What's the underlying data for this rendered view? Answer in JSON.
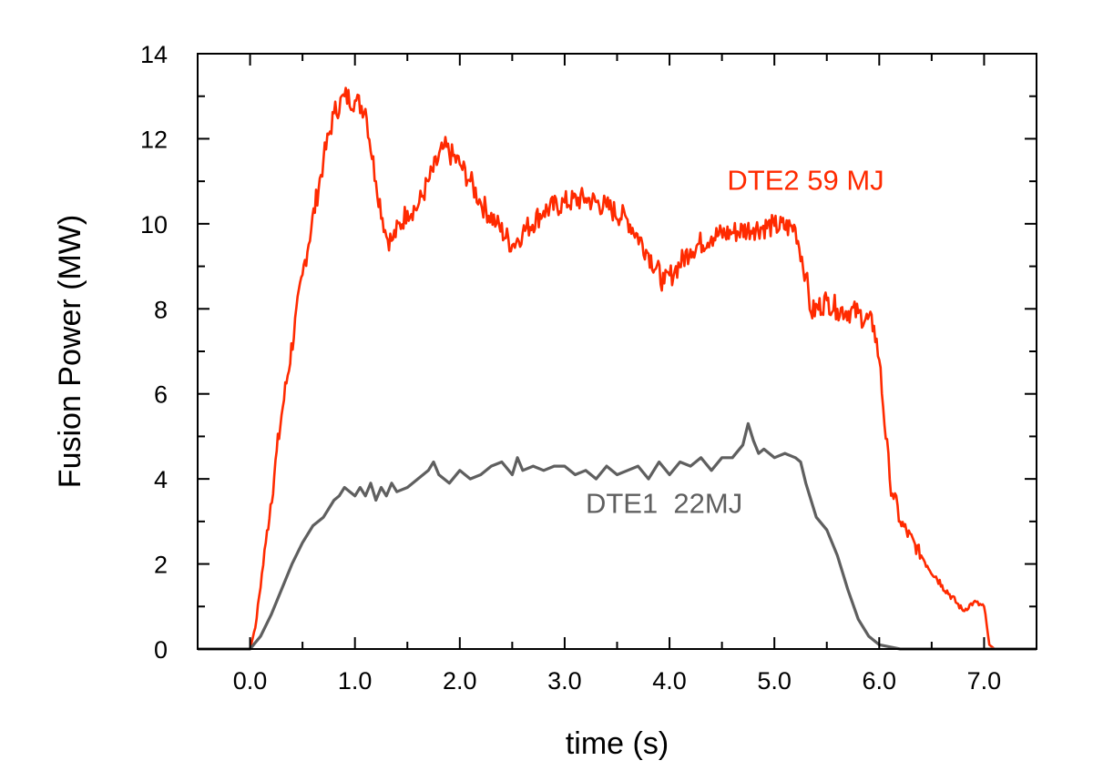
{
  "chart_data": {
    "type": "line",
    "title": "",
    "xlabel": "time (s)",
    "ylabel": "Fusion Power (MW)",
    "xlim": [
      -0.5,
      7.5
    ],
    "ylim": [
      0,
      14
    ],
    "x_ticks": [
      0.0,
      1.0,
      2.0,
      3.0,
      4.0,
      5.0,
      6.0,
      7.0
    ],
    "x_tick_labels": [
      "0.0",
      "1.0",
      "2.0",
      "3.0",
      "4.0",
      "5.0",
      "6.0",
      "7.0"
    ],
    "y_ticks": [
      0,
      2,
      4,
      6,
      8,
      10,
      12,
      14
    ],
    "y_tick_labels": [
      "0",
      "2",
      "4",
      "6",
      "8",
      "10",
      "12",
      "14"
    ],
    "grid": false,
    "series": [
      {
        "name": "DTE2 59 MJ",
        "label": "DTE2 59 MJ",
        "color": "#ff2a00",
        "noise": 0.28,
        "x": [
          -0.5,
          0.0,
          0.05,
          0.15,
          0.3,
          0.5,
          0.7,
          0.8,
          0.9,
          1.0,
          1.1,
          1.2,
          1.3,
          1.35,
          1.5,
          1.6,
          1.7,
          1.85,
          2.0,
          2.1,
          2.2,
          2.35,
          2.5,
          2.6,
          2.8,
          3.0,
          3.2,
          3.4,
          3.6,
          3.8,
          3.95,
          4.05,
          4.2,
          4.4,
          4.6,
          4.8,
          5.0,
          5.2,
          5.3,
          5.35,
          5.5,
          5.6,
          5.8,
          5.95,
          6.0,
          6.1,
          6.2,
          6.4,
          6.6,
          6.8,
          6.9,
          7.0,
          7.05,
          7.1,
          7.3,
          7.5
        ],
        "y": [
          0.0,
          0.0,
          0.5,
          2.5,
          5.5,
          8.8,
          11.5,
          12.6,
          13.0,
          12.9,
          12.7,
          11.0,
          9.7,
          9.6,
          10.3,
          10.4,
          11.0,
          11.8,
          11.4,
          11.0,
          10.5,
          10.0,
          9.5,
          9.8,
          10.3,
          10.5,
          10.6,
          10.4,
          10.1,
          9.3,
          8.6,
          8.9,
          9.4,
          9.7,
          9.8,
          9.9,
          9.95,
          9.9,
          8.8,
          7.9,
          8.2,
          8.0,
          7.9,
          7.6,
          6.8,
          4.0,
          3.0,
          2.2,
          1.5,
          0.9,
          1.1,
          1.0,
          0.1,
          0.0,
          0.0,
          0.0
        ]
      },
      {
        "name": "DTE1  22MJ",
        "label": "DTE1  22MJ",
        "color": "#5f5f5f",
        "x": [
          -0.5,
          0.0,
          0.05,
          0.1,
          0.2,
          0.3,
          0.4,
          0.5,
          0.6,
          0.7,
          0.8,
          0.85,
          0.9,
          1.0,
          1.05,
          1.1,
          1.15,
          1.2,
          1.25,
          1.3,
          1.35,
          1.4,
          1.5,
          1.6,
          1.7,
          1.75,
          1.8,
          1.9,
          2.0,
          2.1,
          2.2,
          2.3,
          2.4,
          2.5,
          2.55,
          2.6,
          2.7,
          2.8,
          2.9,
          3.0,
          3.1,
          3.2,
          3.3,
          3.4,
          3.5,
          3.6,
          3.7,
          3.8,
          3.9,
          4.0,
          4.1,
          4.2,
          4.3,
          4.4,
          4.5,
          4.6,
          4.7,
          4.75,
          4.8,
          4.85,
          4.9,
          5.0,
          5.1,
          5.2,
          5.25,
          5.3,
          5.4,
          5.5,
          5.6,
          5.7,
          5.8,
          5.9,
          6.0,
          6.1,
          6.2,
          6.4,
          7.5
        ],
        "y": [
          0.0,
          0.0,
          0.15,
          0.3,
          0.8,
          1.4,
          2.0,
          2.5,
          2.9,
          3.1,
          3.5,
          3.6,
          3.8,
          3.6,
          3.8,
          3.6,
          3.9,
          3.5,
          3.8,
          3.6,
          3.9,
          3.7,
          3.8,
          4.0,
          4.2,
          4.4,
          4.1,
          3.9,
          4.2,
          4.0,
          4.1,
          4.3,
          4.4,
          4.1,
          4.5,
          4.2,
          4.3,
          4.2,
          4.3,
          4.3,
          4.1,
          4.2,
          4.0,
          4.3,
          4.1,
          4.2,
          4.3,
          4.0,
          4.4,
          4.1,
          4.4,
          4.3,
          4.5,
          4.2,
          4.5,
          4.5,
          4.8,
          5.3,
          4.9,
          4.6,
          4.7,
          4.5,
          4.6,
          4.5,
          4.4,
          3.9,
          3.1,
          2.8,
          2.2,
          1.4,
          0.7,
          0.3,
          0.1,
          0.05,
          0.0,
          0.0,
          0.0
        ]
      }
    ],
    "annotations": [
      {
        "series_index": 0,
        "text": "DTE2 59 MJ",
        "x": 4.55,
        "y": 10.8,
        "color": "#ff2a00"
      },
      {
        "series_index": 1,
        "text": "DTE1  22MJ",
        "x": 3.2,
        "y": 3.2,
        "color": "#5f5f5f"
      }
    ]
  }
}
